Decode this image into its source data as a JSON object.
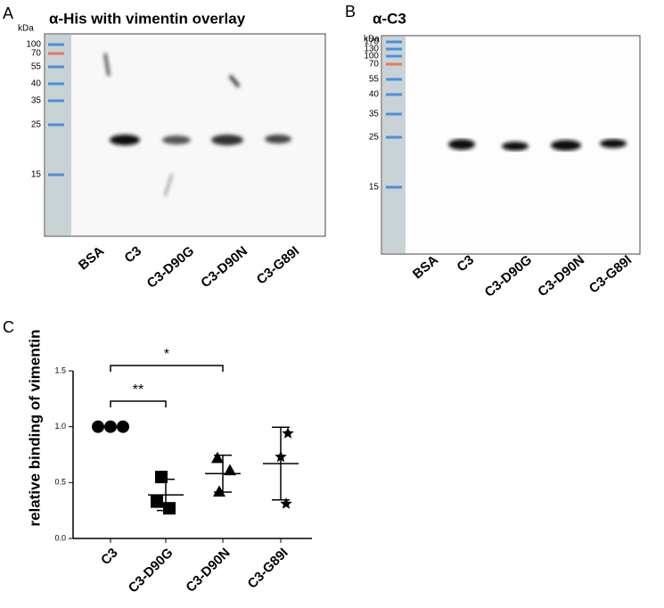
{
  "panels": [
    {
      "letter": "A",
      "title": "α-His with vimentin overlay",
      "unit": "kDa",
      "ladder": [
        100,
        70,
        55,
        40,
        35,
        25,
        15
      ],
      "lanes": [
        "BSA",
        "C3",
        "C3-D90G",
        "C3-D90N",
        "C3-G89I"
      ]
    },
    {
      "letter": "B",
      "title": "α-C3",
      "unit": "kDa",
      "ladder": [
        170,
        130,
        100,
        70,
        55,
        40,
        35,
        25,
        15
      ],
      "lanes": [
        "BSA",
        "C3",
        "C3-D90G",
        "C3-D90N",
        "C3-G89I"
      ]
    }
  ],
  "chart_data": {
    "type": "scatter",
    "letter": "C",
    "y_label": "relative binding of vimentin",
    "categories": [
      "C3",
      "C3-D90G",
      "C3-D90N",
      "C3-G89I"
    ],
    "points": [
      [
        1,
        1,
        1
      ],
      [
        0.55,
        0.33,
        0.27
      ],
      [
        0.72,
        0.61,
        0.42
      ],
      [
        0.94,
        0.73,
        0.31
      ]
    ],
    "means": [
      1,
      0.39,
      0.58,
      0.67
    ],
    "errors": [
      0,
      0.14,
      0.165,
      0.325
    ],
    "markers": [
      "circle",
      "square",
      "triangle",
      "star"
    ],
    "color": "#000000",
    "ylim": [
      0,
      1.5
    ],
    "yticks": [
      {
        "value": 0,
        "label": "0.0"
      },
      0.5,
      {
        "value": 1,
        "label": "1.0"
      },
      1.5
    ],
    "brackets": [
      {
        "label": "**",
        "from": "C3",
        "to": "C3-D90G"
      },
      {
        "label": "*",
        "from": "C3",
        "to": "C3-D90N"
      }
    ]
  }
}
